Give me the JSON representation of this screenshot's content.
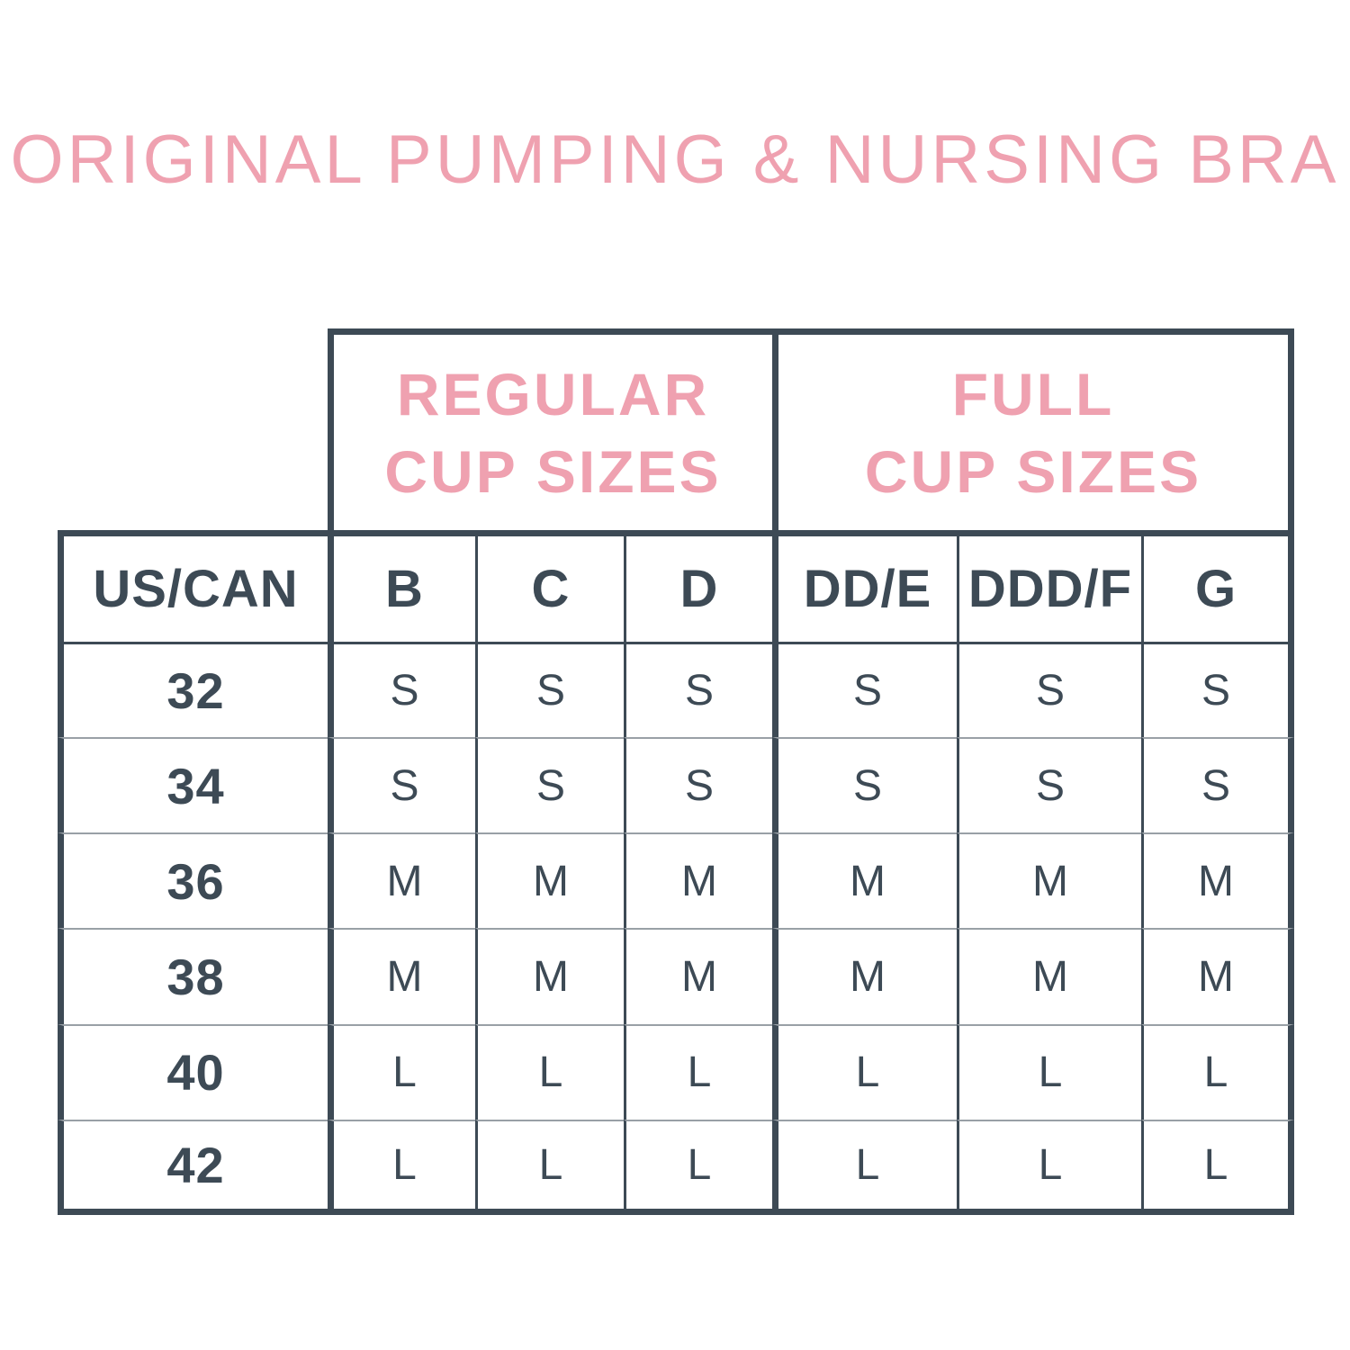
{
  "title": "ORIGINAL PUMPING & NURSING BRA",
  "colors": {
    "accent_pink": "#efa1b0",
    "dark_slate": "#3d4a55",
    "row_divider_gray": "#99a0a6",
    "background": "#ffffff"
  },
  "chart_data": {
    "type": "table",
    "title": "ORIGINAL PUMPING & NURSING BRA",
    "column_groups": [
      {
        "label": "REGULAR CUP SIZES",
        "line1": "REGULAR",
        "line2": "CUP SIZES",
        "columns": [
          "B",
          "C",
          "D"
        ]
      },
      {
        "label": "FULL CUP SIZES",
        "line1": "FULL",
        "line2": "CUP SIZES",
        "columns": [
          "DD/E",
          "DDD/F",
          "G"
        ]
      }
    ],
    "columns": [
      "US/CAN",
      "B",
      "C",
      "D",
      "DD/E",
      "DDD/F",
      "G"
    ],
    "rows": [
      {
        "band": "32",
        "values": [
          "S",
          "S",
          "S",
          "S",
          "S",
          "S"
        ]
      },
      {
        "band": "34",
        "values": [
          "S",
          "S",
          "S",
          "S",
          "S",
          "S"
        ]
      },
      {
        "band": "36",
        "values": [
          "M",
          "M",
          "M",
          "M",
          "M",
          "M"
        ]
      },
      {
        "band": "38",
        "values": [
          "M",
          "M",
          "M",
          "M",
          "M",
          "M"
        ]
      },
      {
        "band": "40",
        "values": [
          "L",
          "L",
          "L",
          "L",
          "L",
          "L"
        ]
      },
      {
        "band": "42",
        "values": [
          "L",
          "L",
          "L",
          "L",
          "L",
          "L"
        ]
      }
    ]
  }
}
